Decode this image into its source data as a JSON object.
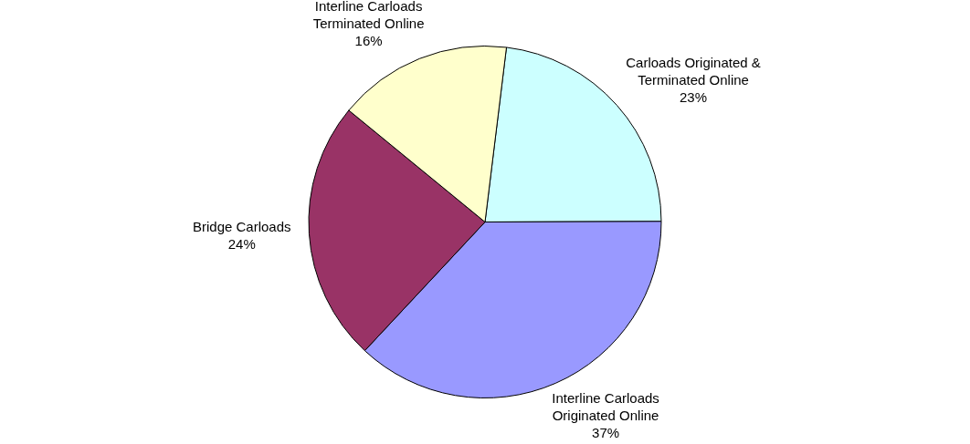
{
  "chart_data": {
    "type": "pie",
    "categories": [
      "Carloads Originated & Terminated Online",
      "Interline Carloads Originated Online",
      "Bridge Carloads",
      "Interline Carloads Terminated Online"
    ],
    "values": [
      23,
      37,
      24,
      16
    ],
    "value_labels": [
      "23%",
      "37%",
      "24%",
      "16%"
    ],
    "colors": [
      "#ccffff",
      "#9999ff",
      "#993366",
      "#ffffcc"
    ],
    "legend": false
  }
}
